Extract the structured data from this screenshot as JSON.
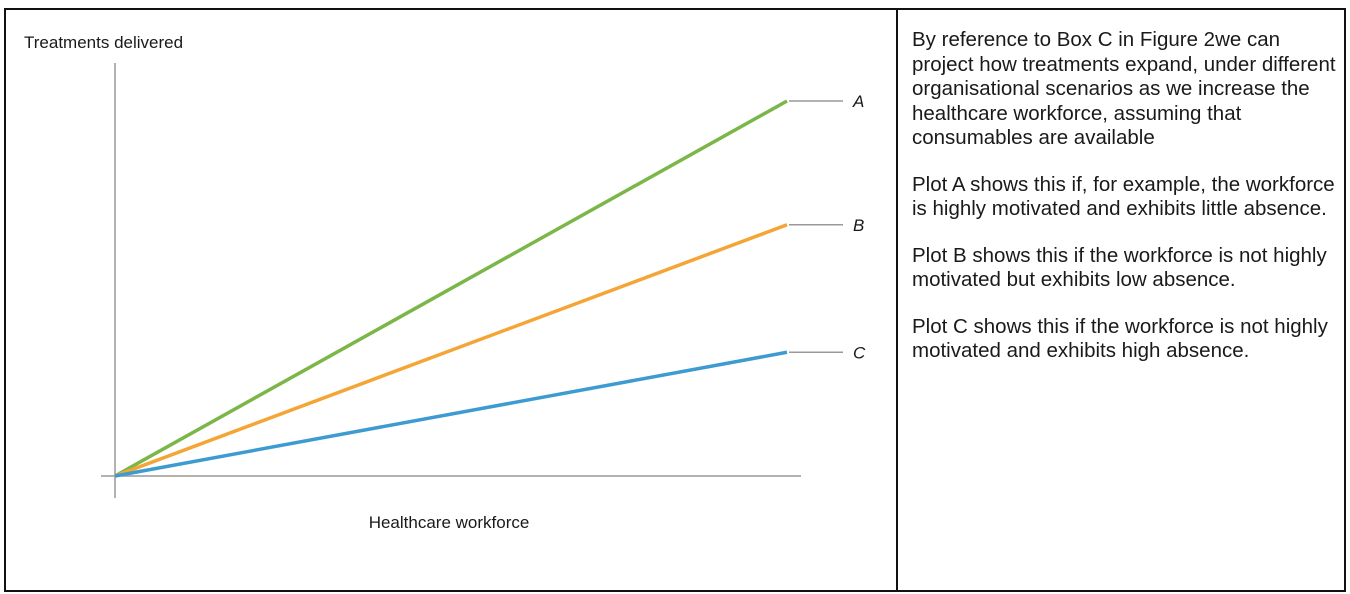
{
  "chart_data": {
    "type": "line",
    "title": "",
    "ylabel": "Treatments delivered",
    "xlabel": "Healthcare workforce",
    "x": [
      0,
      1
    ],
    "xlim": [
      0,
      1.02
    ],
    "ylim": [
      0,
      1.1
    ],
    "grid": false,
    "legend": "line-end labels",
    "series": [
      {
        "name": "A",
        "values": [
          0,
          1.0
        ],
        "color": "#7ab648"
      },
      {
        "name": "B",
        "values": [
          0,
          0.67
        ],
        "color": "#f4a535"
      },
      {
        "name": "C",
        "values": [
          0,
          0.33
        ],
        "color": "#3d9bd1"
      }
    ],
    "label_line_color": "#999999",
    "axis_color": "#999999"
  },
  "description": {
    "paragraphs": [
      "By reference to Box C in Figure 2we can project how treatments expand, under different organisational scenarios as we increase the healthcare workforce, assuming that consumables are available",
      "Plot A shows this if, for example, the workforce is highly motivated and exhibits little absence.",
      "Plot B shows this if  the workforce is not highly motivated but exhibits low absence.",
      "Plot C shows this  if  the workforce is not highly motivated and exhibits high absence."
    ]
  }
}
